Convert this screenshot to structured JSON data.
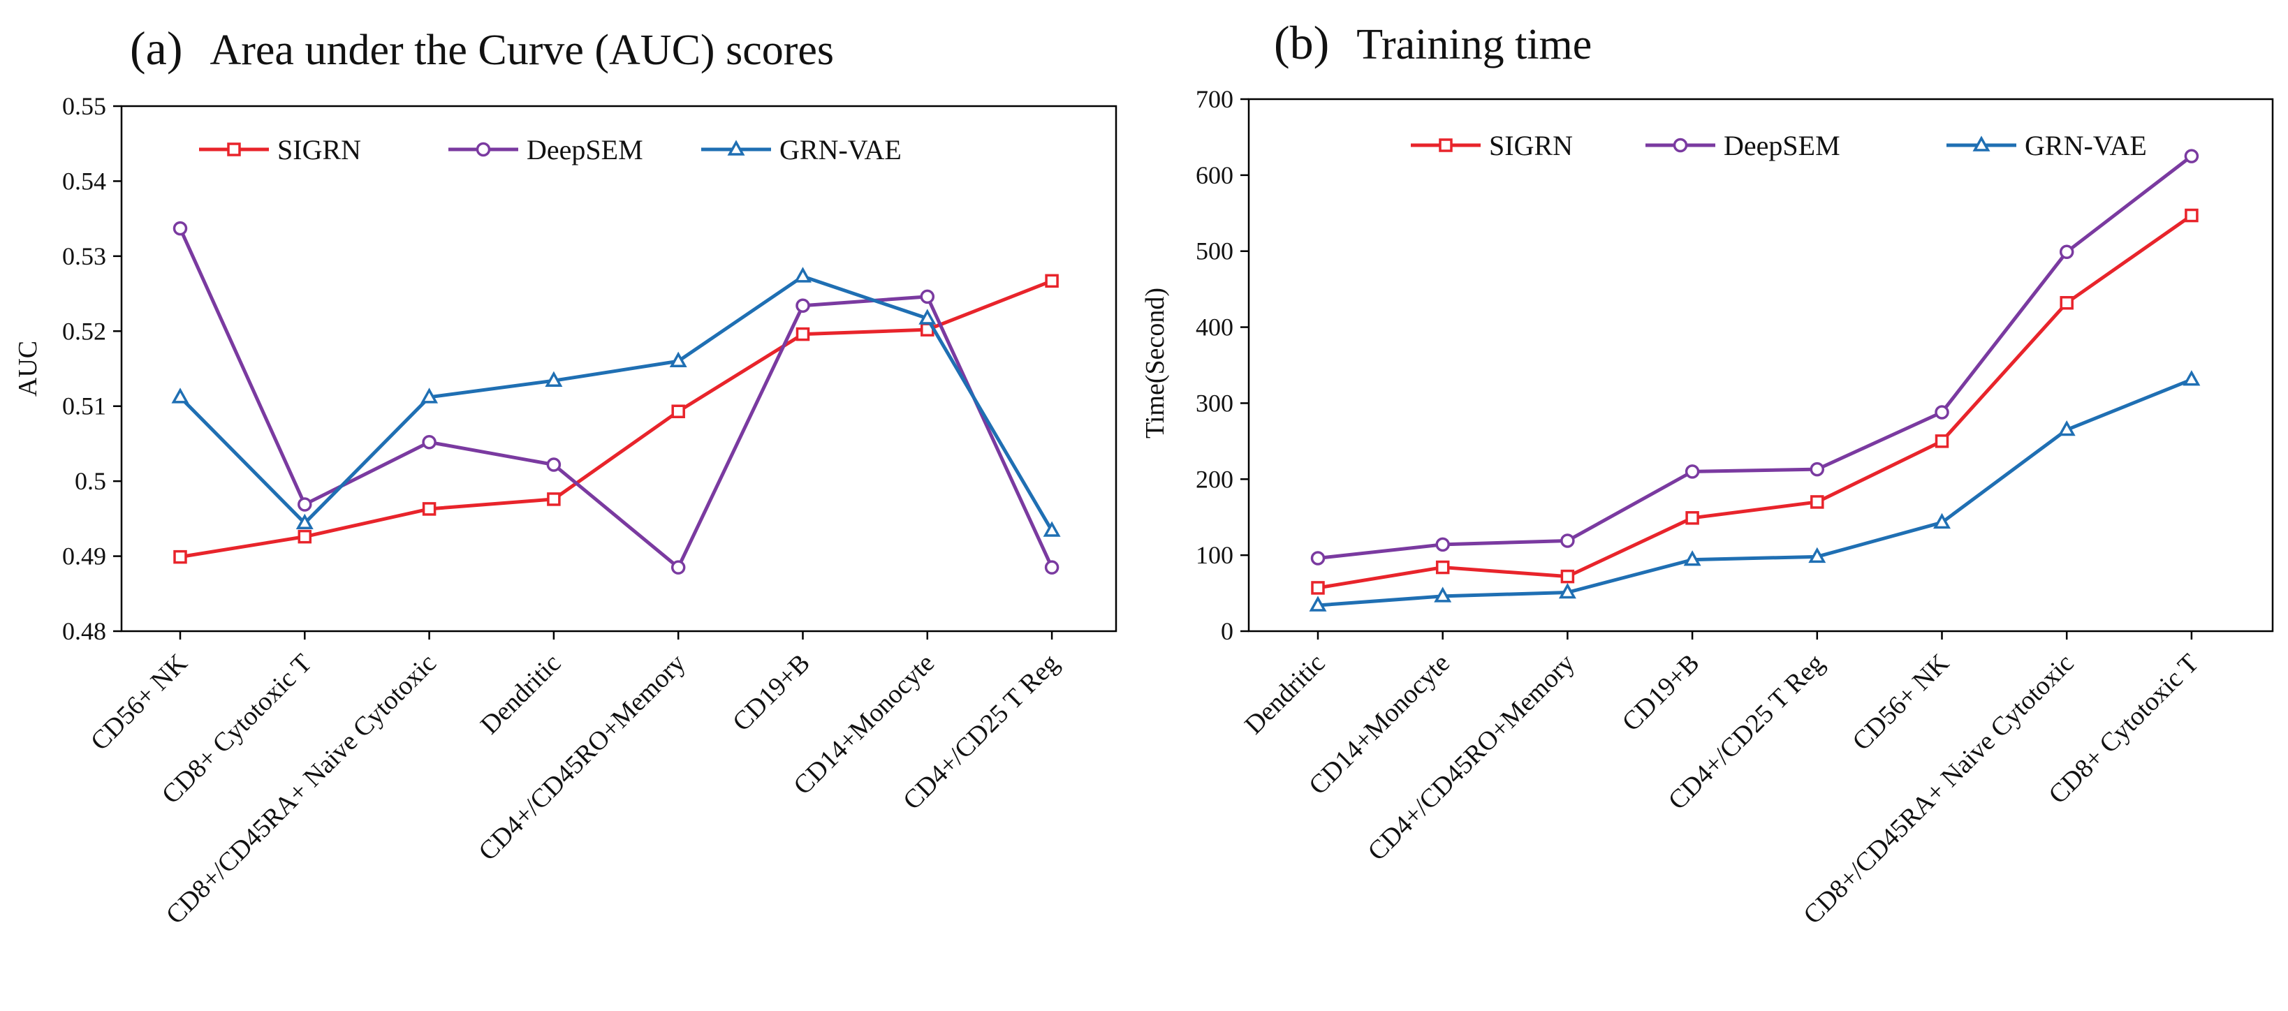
{
  "colors": {
    "SIGRN": "#e8242b",
    "DeepSEM": "#7a3aa0",
    "GRN-VAE": "#1f6fb3"
  },
  "chart_data": [
    {
      "type": "line",
      "panel_label": "(a)",
      "title": "Area under the Curve (AUC) scores",
      "xlabel": "",
      "ylabel": "AUC",
      "ylim": [
        0.48,
        0.55
      ],
      "yticks": [
        0.48,
        0.49,
        0.5,
        0.51,
        0.52,
        0.53,
        0.54,
        0.55
      ],
      "ytick_labels": [
        "0.48",
        "0.49",
        "0.5",
        "0.51",
        "0.52",
        "0.53",
        "0.54",
        "0.55"
      ],
      "categories": [
        "CD56+ NK",
        "CD8+ Cytotoxic T",
        "CD8+/CD45RA+ Naive Cytotoxic",
        "Dendritic",
        "CD4+/CD45RO+Memory",
        "CD19+B",
        "CD14+Monocyte",
        "CD4+/CD25 T Reg"
      ],
      "legend_position": "top",
      "grid": false,
      "series": [
        {
          "name": "SIGRN",
          "marker": "square",
          "values": [
            0.4899,
            0.4926,
            0.4963,
            0.4976,
            0.5093,
            0.5196,
            0.5202,
            0.5267
          ]
        },
        {
          "name": "DeepSEM",
          "marker": "circle",
          "values": [
            0.5337,
            0.4969,
            0.5052,
            0.5022,
            0.4885,
            0.5234,
            0.5246,
            0.4885
          ]
        },
        {
          "name": "GRN-VAE",
          "marker": "triangle",
          "values": [
            0.5112,
            0.4944,
            0.5112,
            0.5134,
            0.516,
            0.5273,
            0.5217,
            0.4934
          ]
        }
      ]
    },
    {
      "type": "line",
      "panel_label": "(b)",
      "title": "Training time",
      "xlabel": "",
      "ylabel": "Time(Second)",
      "ylim": [
        0,
        700
      ],
      "yticks": [
        0,
        100,
        200,
        300,
        400,
        500,
        600,
        700
      ],
      "ytick_labels": [
        "0",
        "100",
        "200",
        "300",
        "400",
        "500",
        "600",
        "700"
      ],
      "categories": [
        "Dendritic",
        "CD14+Monocyte",
        "CD4+/CD45RO+Memory",
        "CD19+B",
        "CD4+/CD25 T Reg",
        "CD56+ NK",
        "CD8+/CD45RA+ Naive Cytotoxic",
        "CD8+ Cytotoxic T"
      ],
      "legend_position": "top",
      "grid": false,
      "series": [
        {
          "name": "SIGRN",
          "marker": "square",
          "values": [
            57,
            84,
            72,
            149,
            170,
            250,
            432,
            547
          ]
        },
        {
          "name": "DeepSEM",
          "marker": "circle",
          "values": [
            96,
            114,
            119,
            210,
            213,
            288,
            499,
            625
          ]
        },
        {
          "name": "GRN-VAE",
          "marker": "triangle",
          "values": [
            34,
            46,
            51,
            94,
            98,
            143,
            265,
            331
          ]
        }
      ]
    }
  ]
}
